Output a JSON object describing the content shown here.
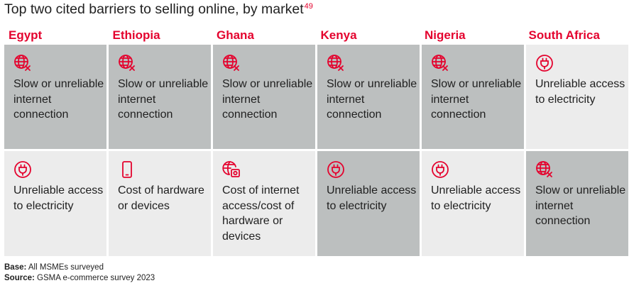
{
  "title": "Top two cited barriers to selling online, by market",
  "title_sup": "49",
  "colors": {
    "accent": "#e4032e",
    "dark_cell": "#bcbfbf",
    "light_cell": "#ececec"
  },
  "markets": [
    "Egypt",
    "Ethiopia",
    "Ghana",
    "Kenya",
    "Nigeria",
    "South Africa"
  ],
  "rows": [
    [
      {
        "icon": "globe-x-icon",
        "text": "Slow or unreliable internet connection",
        "shade": "dark"
      },
      {
        "icon": "globe-x-icon",
        "text": "Slow or unreliable internet connection",
        "shade": "dark"
      },
      {
        "icon": "globe-x-icon",
        "text": "Slow or unreliable internet connection",
        "shade": "dark"
      },
      {
        "icon": "globe-x-icon",
        "text": "Slow or unreliable internet connection",
        "shade": "dark"
      },
      {
        "icon": "globe-x-icon",
        "text": "Slow or unreliable internet connection",
        "shade": "dark"
      },
      {
        "icon": "plug-icon",
        "text": "Unreliable access to electricity",
        "shade": "light"
      }
    ],
    [
      {
        "icon": "plug-icon",
        "text": "Unreliable access to electricity",
        "shade": "light"
      },
      {
        "icon": "phone-icon",
        "text": "Cost of hardware or devices",
        "shade": "light"
      },
      {
        "icon": "globe-cost-icon",
        "text": "Cost of internet access/cost of hardware or devices",
        "shade": "light"
      },
      {
        "icon": "plug-icon",
        "text": "Unreliable access to electricity",
        "shade": "dark"
      },
      {
        "icon": "plug-icon",
        "text": "Unreliable access to electricity",
        "shade": "light"
      },
      {
        "icon": "globe-x-icon",
        "text": "Slow or unreliable internet connection",
        "shade": "dark"
      }
    ]
  ],
  "footer": {
    "base_label": "Base:",
    "base_text": "All MSMEs surveyed",
    "source_label": "Source:",
    "source_text": "GSMA e-commerce survey 2023"
  }
}
